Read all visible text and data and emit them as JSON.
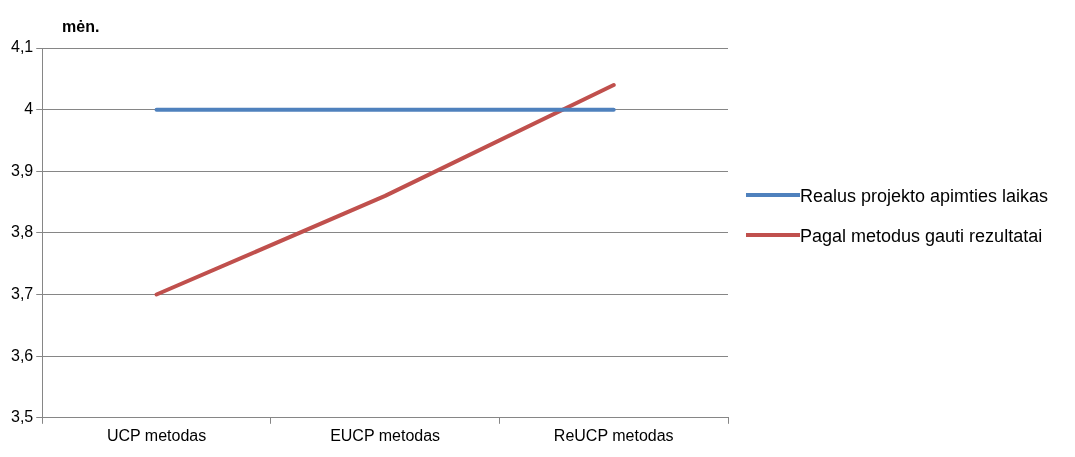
{
  "chart_data": {
    "type": "line",
    "ylabel": "mėn.",
    "categories": [
      "UCP metodas",
      "EUCP metodas",
      "ReUCP metodas"
    ],
    "series": [
      {
        "name": "Realus projekto apimties laikas",
        "color": "#4f81bd",
        "values": [
          4,
          4,
          4
        ]
      },
      {
        "name": "Pagal metodus gauti rezultatai",
        "color": "#c0504d",
        "values": [
          3.7,
          3.86,
          4.04
        ]
      }
    ],
    "ylim": [
      3.5,
      4.1
    ],
    "yticks": [
      {
        "value": 3.5,
        "label": "3,5"
      },
      {
        "value": 3.6,
        "label": "3,6"
      },
      {
        "value": 3.7,
        "label": "3,7"
      },
      {
        "value": 3.8,
        "label": "3,8"
      },
      {
        "value": 3.9,
        "label": "3,9"
      },
      4,
      {
        "value": 4.1,
        "label": "4,1"
      }
    ],
    "grid": "y",
    "legend": "right",
    "marker": "none",
    "line_style": "solid"
  }
}
